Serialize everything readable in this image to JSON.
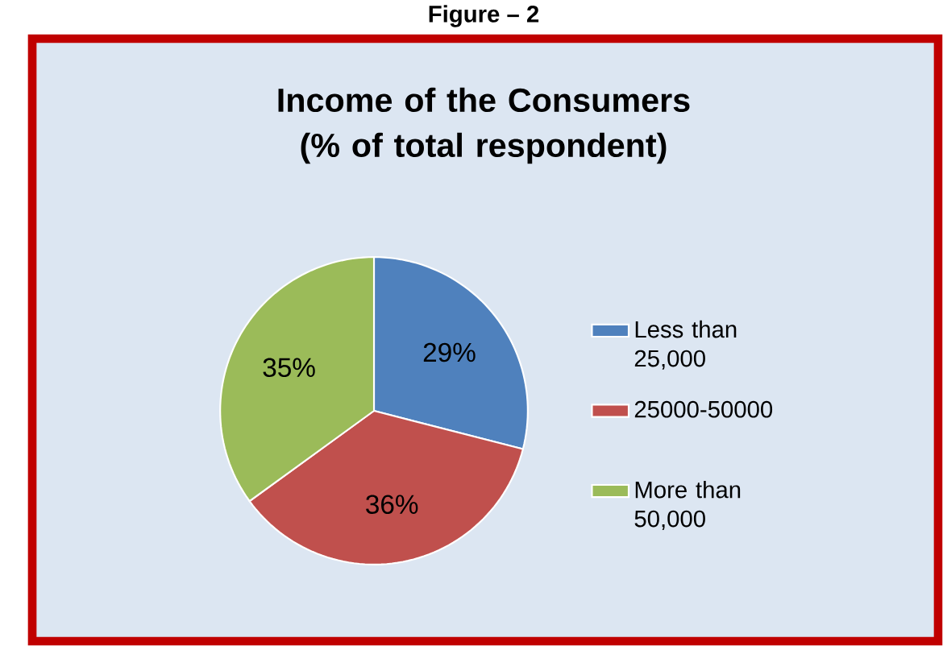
{
  "chart_data": {
    "type": "pie",
    "title": "Income of the Consumers (% of total respondent)",
    "categories": [
      "Less than 25,000",
      "25000-50000",
      "More than 50,000"
    ],
    "values": [
      29,
      36,
      35
    ],
    "colors": [
      "#4f81bd",
      "#c0504d",
      "#9bbb59"
    ],
    "value_labels": [
      "29%",
      "36%",
      "35%"
    ],
    "legend": "right",
    "annotations": [
      "Figure – 2"
    ]
  }
}
